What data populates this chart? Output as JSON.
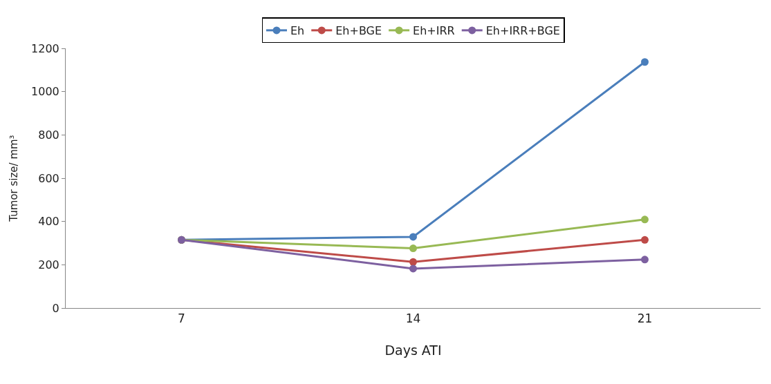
{
  "chart_data": {
    "type": "line",
    "xlabel": "Days ATI",
    "ylabel": "Tumor size/ mm³",
    "categories": [
      "7",
      "14",
      "21"
    ],
    "series": [
      {
        "name": "Eh",
        "color": "#4a7ebb",
        "values": [
          315,
          329,
          1137
        ]
      },
      {
        "name": "Eh+BGE",
        "color": "#be4b48",
        "values": [
          315,
          213,
          315
        ]
      },
      {
        "name": "Eh+IRR",
        "color": "#98b954",
        "values": [
          315,
          276,
          409
        ]
      },
      {
        "name": "Eh+IRR+BGE",
        "color": "#7d60a0",
        "values": [
          315,
          182,
          224
        ]
      }
    ],
    "ylim": [
      0,
      1200
    ],
    "yticks": [
      0,
      200,
      400,
      600,
      800,
      1000,
      1200
    ],
    "legend": "top",
    "marker": "circle",
    "line_style": "solid"
  }
}
